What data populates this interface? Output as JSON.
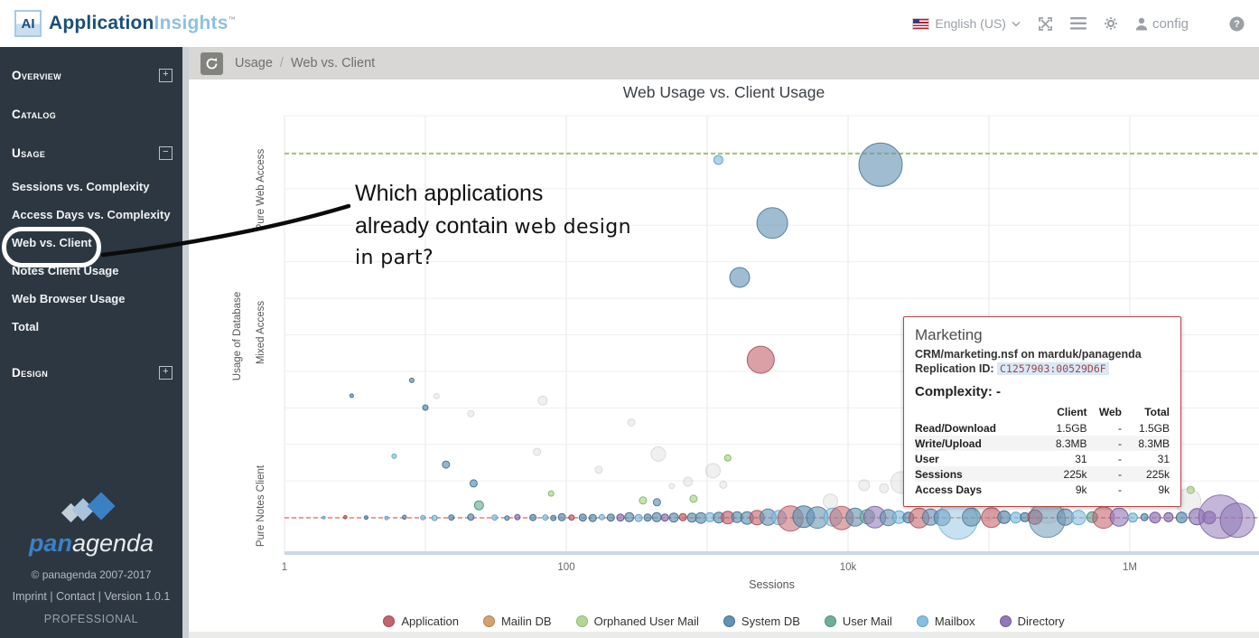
{
  "header": {
    "logo_badge": "AI",
    "brand_primary": "Application",
    "brand_secondary": "Insights",
    "trademark": "™",
    "language_label": "English (US)",
    "config_label": "config"
  },
  "sidebar": {
    "sections": [
      {
        "label": "Overview",
        "expander": "plus",
        "items": []
      },
      {
        "label": "Catalog",
        "expander": null,
        "items": []
      },
      {
        "label": "Usage",
        "expander": "minus",
        "items": [
          "Sessions vs. Complexity",
          "Access Days vs. Complexity",
          "Web vs. Client",
          "Notes Client Usage",
          "Web Browser Usage",
          "Total"
        ]
      },
      {
        "label": "Design",
        "expander": "plus",
        "items": []
      }
    ],
    "active_item": "Web vs. Client",
    "footer": {
      "brand_bold": "pan",
      "brand_light": "agenda",
      "copyright": "© panagenda 2007-2017",
      "links": "Imprint | Contact | Version 1.0.1",
      "edition": "PROFESSIONAL"
    }
  },
  "breadcrumb": {
    "section": "Usage",
    "separator": "/",
    "page": "Web vs. Client"
  },
  "annotation": {
    "line1": "Which applications",
    "line2_normal": "already contain ",
    "line2_alt": "web design",
    "line3": "in part?"
  },
  "tooltip": {
    "title": "Marketing",
    "subtitle": "CRM/marketing.nsf on marduk/panagenda",
    "replication_label": "Replication ID:",
    "replication_id": "C1257903:00529D6F",
    "complexity": "Complexity: -",
    "table": {
      "headers": [
        "",
        "Client",
        "Web",
        "Total"
      ],
      "rows": [
        [
          "Read/Download",
          "1.5GB",
          "-",
          "1.5GB"
        ],
        [
          "Write/Upload",
          "8.3MB",
          "-",
          "8.3MB"
        ],
        [
          "User",
          "31",
          "-",
          "31"
        ],
        [
          "Sessions",
          "225k",
          "-",
          "225k"
        ],
        [
          "Access Days",
          "9k",
          "-",
          "9k"
        ]
      ]
    }
  },
  "chart_data": {
    "type": "scatter",
    "title": "Web Usage vs. Client Usage",
    "xlabel": "Sessions",
    "ylabel": "Usage of Database",
    "x_scale": "log",
    "xlim": [
      1,
      8000000
    ],
    "x_ticks": [
      {
        "label": "1",
        "value": 1
      },
      {
        "label": "100",
        "value": 100
      },
      {
        "label": "10k",
        "value": 10000
      },
      {
        "label": "1M",
        "value": 1000000
      }
    ],
    "y_bands": [
      "Pure Web Access",
      "Mixed Access",
      "Pure Notes Client"
    ],
    "grid": true,
    "reference_lines": [
      {
        "name": "pure-web-access-line",
        "y_frac": 0.0866,
        "color": "#74a32e"
      },
      {
        "name": "pure-notes-client-line",
        "y_frac": 0.9175,
        "color": "#e4695c"
      }
    ],
    "legend_position": "bottom",
    "legend": [
      {
        "label": "Application",
        "key": "app",
        "color": "#c4646c",
        "stroke": "#a8454f"
      },
      {
        "label": "Mailin DB",
        "key": "mai",
        "color": "#d2a272",
        "stroke": "#b8824a"
      },
      {
        "label": "Orphaned User Mail",
        "key": "orp",
        "color": "#b2d698",
        "stroke": "#8cbb68"
      },
      {
        "label": "System DB",
        "key": "sys",
        "color": "#6392b2",
        "stroke": "#447291"
      },
      {
        "label": "User Mail",
        "key": "usr",
        "color": "#6fae9b",
        "stroke": "#4d907c"
      },
      {
        "label": "Mailbox",
        "key": "mbx",
        "color": "#85c0df",
        "stroke": "#5ea4c9"
      },
      {
        "label": "Directory",
        "key": "dir",
        "color": "#9179b7",
        "stroke": "#715699"
      }
    ],
    "inactive_color": "#c9c9c9",
    "bubble_format": "[sessions, y_frac (0=Pure Web Access top, 1=Pure Notes Client bottom), radius_px, category_key, opacity]",
    "bubbles": [
      [
        1200,
        0.101,
        5,
        "mbx",
        0.95
      ],
      [
        17000,
        0.112,
        24,
        "sys",
        0.85
      ],
      [
        2900,
        0.245,
        17,
        "sys",
        0.85
      ],
      [
        1700,
        0.369,
        11,
        "sys",
        0.85
      ],
      [
        2400,
        0.557,
        15,
        "app",
        0.85
      ],
      [
        8,
        0.604,
        2.5,
        "sys",
        1
      ],
      [
        3,
        0.639,
        2,
        "sys",
        1
      ],
      [
        10,
        0.666,
        3,
        "sys",
        1
      ],
      [
        6,
        0.777,
        2.5,
        "mbx",
        0.95
      ],
      [
        14,
        0.796,
        4,
        "sys",
        0.95
      ],
      [
        22,
        0.839,
        4,
        "sys",
        0.95
      ],
      [
        1400,
        0.781,
        3.5,
        "orp",
        1
      ],
      [
        24,
        0.889,
        5,
        "usr",
        0.9
      ],
      [
        78,
        0.862,
        3,
        "orp",
        1
      ],
      [
        350,
        0.878,
        4,
        "orp",
        1
      ],
      [
        800,
        0.874,
        4,
        "orp",
        1
      ],
      [
        440,
        0.882,
        4,
        "sys",
        0.9
      ],
      [
        1150000,
        0.858,
        4,
        "orp",
        1
      ],
      [
        2700000,
        0.854,
        4,
        "orp",
        1
      ],
      [
        1500000,
        0.858,
        4,
        "sys",
        1
      ],
      [
        12,
        0.64,
        3,
        "ina",
        1
      ],
      [
        68,
        0.65,
        5,
        "ina",
        1
      ],
      [
        21,
        0.68,
        3.5,
        "ina",
        1
      ],
      [
        290,
        0.7,
        4,
        "ina",
        1
      ],
      [
        62,
        0.767,
        4,
        "ina",
        1
      ],
      [
        450,
        0.772,
        8,
        "ina",
        1
      ],
      [
        170,
        0.808,
        4,
        "ina",
        1
      ],
      [
        1100,
        0.81,
        8,
        "ina",
        1
      ],
      [
        730,
        0.835,
        5,
        "ina",
        1
      ],
      [
        1300,
        0.842,
        4,
        "ina",
        1
      ],
      [
        560,
        0.845,
        3,
        "ina",
        1
      ],
      [
        13000,
        0.843,
        6,
        "ina",
        1
      ],
      [
        18000,
        0.85,
        5,
        "ina",
        1
      ],
      [
        24000,
        0.837,
        12,
        "ina",
        1
      ],
      [
        700000,
        0.857,
        10,
        "ina",
        1
      ],
      [
        1600000,
        0.88,
        6,
        "ina",
        1
      ],
      [
        260000,
        0.893,
        18,
        "ina",
        1
      ],
      [
        2600000,
        0.88,
        14,
        "ina",
        1
      ],
      [
        7500,
        0.88,
        8,
        "ina",
        1
      ],
      [
        95000,
        0.9,
        12,
        "ina",
        1
      ],
      [
        1.9,
        0.917,
        1.5,
        "mbx",
        1
      ],
      [
        2.7,
        0.916,
        1.8,
        "app",
        1
      ],
      [
        3.8,
        0.917,
        2,
        "sys",
        1
      ],
      [
        5.3,
        0.918,
        2,
        "mbx",
        1
      ],
      [
        7.1,
        0.916,
        2.2,
        "sys",
        1
      ],
      [
        9.6,
        0.917,
        2.5,
        "mbx",
        1
      ],
      [
        11.6,
        0.918,
        3,
        "mbx",
        1
      ],
      [
        15.3,
        0.917,
        3,
        "sys",
        1
      ],
      [
        21,
        0.916,
        3.5,
        "sys",
        1
      ],
      [
        31,
        0.917,
        3,
        "mbx",
        1
      ],
      [
        38,
        0.918,
        2.5,
        "sys",
        1
      ],
      [
        45,
        0.916,
        3,
        "dir",
        1
      ],
      [
        58,
        0.917,
        3.5,
        "sys",
        1
      ],
      [
        71,
        0.917,
        3,
        "mbx",
        1
      ],
      [
        81,
        0.918,
        3,
        "sys",
        1
      ],
      [
        93,
        0.916,
        4,
        "sys",
        1
      ],
      [
        109,
        0.917,
        3,
        "app",
        1
      ],
      [
        131,
        0.917,
        4,
        "sys",
        1
      ],
      [
        154,
        0.918,
        4,
        "sys",
        1
      ],
      [
        179,
        0.916,
        3,
        "mbx",
        1
      ],
      [
        207,
        0.917,
        4,
        "sys",
        1
      ],
      [
        242,
        0.917,
        4,
        "dir",
        1
      ],
      [
        280,
        0.916,
        5,
        "sys",
        0.95
      ],
      [
        326,
        0.918,
        4,
        "mbx",
        1
      ],
      [
        378,
        0.917,
        4,
        "sys",
        1
      ],
      [
        438,
        0.916,
        5,
        "sys",
        0.95
      ],
      [
        501,
        0.917,
        4,
        "dir",
        1
      ],
      [
        580,
        0.917,
        5,
        "sys",
        0.95
      ],
      [
        672,
        0.916,
        4,
        "app",
        1
      ],
      [
        779,
        0.917,
        5,
        "sys",
        0.95
      ],
      [
        902,
        0.918,
        6,
        "sys",
        0.95
      ],
      [
        1045,
        0.916,
        5,
        "mbx",
        0.95
      ],
      [
        1210,
        0.917,
        6,
        "sys",
        0.95
      ],
      [
        1400,
        0.917,
        7,
        "app",
        0.9
      ],
      [
        1630,
        0.916,
        6,
        "sys",
        0.95
      ],
      [
        1920,
        0.918,
        7,
        "sys",
        0.9
      ],
      [
        2260,
        0.917,
        8,
        "app",
        0.85
      ],
      [
        2700,
        0.916,
        9,
        "sys",
        0.85
      ],
      [
        3240,
        0.917,
        8,
        "mbx",
        0.85
      ],
      [
        3900,
        0.919,
        14,
        "app",
        0.75
      ],
      [
        4840,
        0.915,
        12,
        "sys",
        0.9
      ],
      [
        6060,
        0.917,
        12,
        "sys",
        0.8
      ],
      [
        7800,
        0.916,
        10,
        "mbx",
        0.8
      ],
      [
        9000,
        0.918,
        13,
        "app",
        0.75
      ],
      [
        11200,
        0.916,
        10,
        "sys",
        0.85
      ],
      [
        13700,
        0.915,
        8,
        "usr",
        0.85
      ],
      [
        15500,
        0.916,
        12,
        "dir",
        0.8
      ],
      [
        19300,
        0.917,
        9,
        "sys",
        0.85
      ],
      [
        23000,
        0.916,
        7,
        "mbx",
        0.9
      ],
      [
        26800,
        0.917,
        6,
        "sys",
        1
      ],
      [
        31900,
        0.918,
        11,
        "app",
        0.8
      ],
      [
        38500,
        0.916,
        9,
        "sys",
        0.85
      ],
      [
        46500,
        0.917,
        9,
        "sys",
        0.85
      ],
      [
        60000,
        0.921,
        22,
        "mbx",
        0.65
      ],
      [
        75000,
        0.916,
        10,
        "sys",
        0.8
      ],
      [
        104000,
        0.917,
        11,
        "app",
        0.8
      ],
      [
        128000,
        0.916,
        7,
        "sys",
        1
      ],
      [
        155000,
        0.917,
        6,
        "mbx",
        1
      ],
      [
        180000,
        0.916,
        5,
        "sys",
        1
      ],
      [
        212000,
        0.916,
        8,
        "app",
        0.9
      ],
      [
        259000,
        0.921,
        20,
        "sys",
        0.7
      ],
      [
        348000,
        0.916,
        9,
        "sys",
        0.85
      ],
      [
        432000,
        0.917,
        8,
        "mbx",
        0.85
      ],
      [
        540000,
        0.916,
        6,
        "usr",
        1
      ],
      [
        650000,
        0.917,
        12,
        "app",
        0.8
      ],
      [
        840000,
        0.916,
        10,
        "dir",
        0.85
      ],
      [
        1050000,
        0.917,
        5,
        "mbx",
        1
      ],
      [
        1270000,
        0.916,
        4,
        "sys",
        1
      ],
      [
        1510000,
        0.917,
        6,
        "dir",
        1
      ],
      [
        1880000,
        0.916,
        5,
        "dir",
        1
      ],
      [
        2330000,
        0.917,
        6,
        "sys",
        1
      ],
      [
        3000000,
        0.915,
        9,
        "dir",
        0.95
      ],
      [
        3660000,
        0.917,
        7,
        "dir",
        1
      ],
      [
        4400000,
        0.915,
        24,
        "dir",
        0.75
      ],
      [
        5800000,
        0.923,
        19,
        "dir",
        0.75
      ]
    ]
  }
}
